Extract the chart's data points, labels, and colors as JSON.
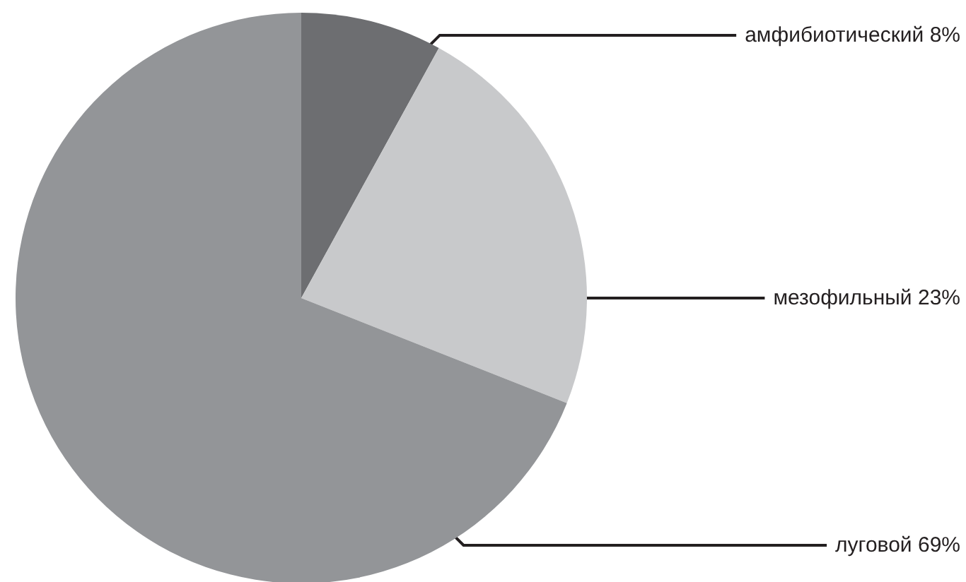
{
  "chart_data": {
    "type": "pie",
    "categories": [
      "амфибиотический",
      "мезофильный",
      "луговой"
    ],
    "values": [
      8,
      23,
      69
    ],
    "value_labels": [
      "8%",
      "23%",
      "69%"
    ],
    "colors": [
      "#6d6e71",
      "#c8c9cb",
      "#939598"
    ],
    "legend": false
  }
}
